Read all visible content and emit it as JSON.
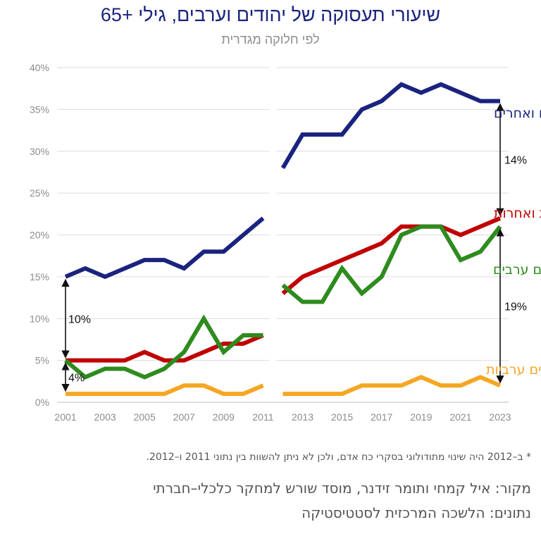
{
  "title": "שיעורי תעסוקה של יהודים וערבים, גילי +65",
  "subtitle": "לפי חלוקה מגדרית",
  "footnote": "* ב–2012 היה שינוי מתודולוגי בסקרי כח אדם, ולכן לא ניתן להשוות בין נתוני 2011 ו–2012.",
  "source": "מקור: איל קמחי ותומר זידנר, מוסד שורש למחקר כלכלי–חברתי",
  "data_source": "נתונים: הלשכה המרכזית לסטטיסטיקה",
  "chart_data": {
    "type": "line",
    "x": [
      2001,
      2002,
      2003,
      2004,
      2005,
      2006,
      2007,
      2008,
      2009,
      2010,
      2011,
      2012,
      2013,
      2014,
      2015,
      2016,
      2017,
      2018,
      2019,
      2020,
      2021,
      2022,
      2023
    ],
    "x_ticks": [
      2001,
      2003,
      2005,
      2007,
      2009,
      2011,
      2013,
      2015,
      2017,
      2019,
      2021,
      2023
    ],
    "y_ticks": [
      "0%",
      "5%",
      "10%",
      "15%",
      "20%",
      "25%",
      "30%",
      "35%",
      "40%"
    ],
    "ylim": [
      0,
      40
    ],
    "break_between": [
      2011,
      2012
    ],
    "series": [
      {
        "name": "גברים יהודים ואחרים",
        "color": "#1a237e",
        "values": [
          15,
          16,
          15,
          16,
          17,
          17,
          16,
          18,
          18,
          20,
          22,
          28,
          32,
          32,
          32,
          35,
          36,
          38,
          37,
          38,
          37,
          36,
          36
        ]
      },
      {
        "name": "נשים יהודיות ואחרות",
        "color": "#c00000",
        "values": [
          5,
          5,
          5,
          5,
          6,
          5,
          5,
          6,
          7,
          7,
          8,
          13,
          15,
          16,
          17,
          18,
          19,
          21,
          21,
          21,
          20,
          21,
          22
        ]
      },
      {
        "name": "גברים ערבים",
        "color": "#2e8b1e",
        "values": [
          5,
          3,
          4,
          4,
          3,
          4,
          6,
          10,
          6,
          8,
          8,
          14,
          12,
          12,
          16,
          13,
          15,
          20,
          21,
          21,
          17,
          18,
          21
        ]
      },
      {
        "name": "נשים ערביות",
        "color": "#f5a623",
        "values": [
          1,
          1,
          1,
          1,
          1,
          1,
          2,
          2,
          1,
          1,
          2,
          1,
          1,
          1,
          1,
          2,
          2,
          2,
          3,
          2,
          2,
          3,
          2
        ]
      }
    ],
    "annotations": [
      {
        "text": "10%",
        "x": 2001,
        "from": 5,
        "to": 15
      },
      {
        "text": "4%",
        "x": 2001,
        "from": 1,
        "to": 5
      },
      {
        "text": "14%",
        "x": 2023,
        "from": 22,
        "to": 36
      },
      {
        "text": "19%",
        "x": 2023,
        "from": 2,
        "to": 21
      }
    ]
  }
}
